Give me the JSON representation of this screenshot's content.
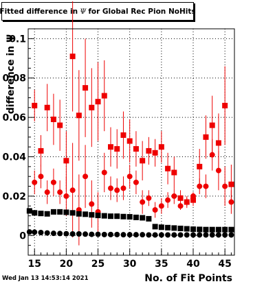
{
  "chart_data": {
    "type": "scatter",
    "title": "Fitted difference in Ψ for Global Rec Pion NoHits",
    "xlabel": "No. of Fit Points",
    "ylabel": "difference in Ψ",
    "xlim": [
      14,
      46.5
    ],
    "ylim": [
      -0.01,
      0.105
    ],
    "x_ticks": [
      15,
      20,
      25,
      30,
      35,
      40,
      45
    ],
    "x_tick_labels": [
      "15",
      "20",
      "25",
      "30",
      "35",
      "40",
      "45"
    ],
    "y_ticks": [
      0,
      0.02,
      0.04,
      0.06,
      0.08,
      0.1
    ],
    "y_tick_labels": [
      "0",
      "0.02",
      "0.04",
      "0.06",
      "0.08",
      "0.1"
    ],
    "series": [
      {
        "marker": "square",
        "color": "#ee0000",
        "x": [
          15,
          16,
          17,
          18,
          19,
          20,
          21,
          22,
          23,
          24,
          25,
          26,
          27,
          28,
          29,
          30,
          31,
          32,
          33,
          34,
          35,
          36,
          37,
          38,
          39,
          40,
          41,
          42,
          43,
          44,
          45,
          46
        ],
        "y": [
          0.066,
          0.043,
          0.065,
          0.059,
          0.056,
          0.038,
          0.091,
          0.061,
          0.075,
          0.065,
          0.068,
          0.071,
          0.045,
          0.044,
          0.051,
          0.048,
          0.044,
          0.038,
          0.043,
          0.042,
          0.045,
          0.034,
          0.032,
          0.019,
          0.017,
          0.018,
          0.035,
          0.05,
          0.056,
          0.047,
          0.066,
          0.026
        ],
        "err": [
          0.008,
          0.008,
          0.012,
          0.013,
          0.013,
          0.015,
          0.028,
          0.023,
          0.025,
          0.02,
          0.02,
          0.018,
          0.01,
          0.01,
          0.012,
          0.011,
          0.009,
          0.01,
          0.007,
          0.007,
          0.008,
          0.008,
          0.008,
          0.004,
          0.003,
          0.003,
          0.009,
          0.011,
          0.015,
          0.015,
          0.02,
          0.01
        ]
      },
      {
        "marker": "circle",
        "color": "#ee0000",
        "x": [
          15,
          16,
          17,
          18,
          19,
          20,
          21,
          22,
          23,
          24,
          25,
          26,
          27,
          28,
          29,
          30,
          31,
          32,
          33,
          34,
          35,
          36,
          37,
          38,
          39,
          40,
          41,
          42,
          43,
          44,
          45,
          46
        ],
        "y": [
          0.027,
          0.03,
          0.022,
          0.027,
          0.022,
          0.02,
          0.023,
          0.013,
          0.03,
          0.016,
          0.012,
          0.032,
          0.024,
          0.023,
          0.024,
          0.03,
          0.027,
          0.017,
          0.019,
          0.013,
          0.015,
          0.018,
          0.02,
          0.015,
          0.017,
          0.02,
          0.025,
          0.025,
          0.041,
          0.033,
          0.025,
          0.017
        ],
        "err": [
          0.006,
          0.006,
          0.006,
          0.007,
          0.006,
          0.01,
          0.024,
          0.018,
          0.016,
          0.012,
          0.01,
          0.01,
          0.006,
          0.006,
          0.006,
          0.006,
          0.006,
          0.006,
          0.004,
          0.004,
          0.004,
          0.004,
          0.004,
          0.002,
          0.002,
          0.002,
          0.004,
          0.006,
          0.008,
          0.01,
          0.01,
          0.006
        ]
      },
      {
        "marker": "square",
        "color": "#000000",
        "x": [
          14.2,
          15,
          16,
          17,
          18,
          19,
          20,
          21,
          22,
          23,
          24,
          25,
          26,
          27,
          28,
          29,
          30,
          31,
          32,
          33,
          34,
          35,
          36,
          37,
          38,
          39,
          40,
          41,
          42,
          43,
          44,
          45,
          46
        ],
        "y": [
          0.0125,
          0.0115,
          0.0112,
          0.011,
          0.012,
          0.012,
          0.0118,
          0.0115,
          0.011,
          0.0108,
          0.0105,
          0.0102,
          0.01,
          0.0098,
          0.0098,
          0.0096,
          0.0095,
          0.0092,
          0.009,
          0.0085,
          0.0045,
          0.0042,
          0.004,
          0.0038,
          0.0036,
          0.0034,
          0.0032,
          0.0031,
          0.003,
          0.003,
          0.003,
          0.003,
          0.003
        ],
        "err": [
          0,
          0,
          0,
          0,
          0,
          0,
          0,
          0,
          0,
          0,
          0,
          0,
          0,
          0,
          0,
          0,
          0,
          0,
          0,
          0,
          0,
          0,
          0,
          0,
          0,
          0,
          0,
          0,
          0,
          0,
          0,
          0,
          0
        ]
      },
      {
        "marker": "circle",
        "color": "#000000",
        "x": [
          14.2,
          15,
          16,
          17,
          18,
          19,
          20,
          21,
          22,
          23,
          24,
          25,
          26,
          27,
          28,
          29,
          30,
          31,
          32,
          33,
          34,
          35,
          36,
          37,
          38,
          39,
          40,
          41,
          42,
          43,
          44,
          45,
          46
        ],
        "y": [
          0.0018,
          0.0017,
          0.0015,
          0.0013,
          0.0011,
          0.001,
          0.0009,
          0.0008,
          0.0008,
          0.0007,
          0.0006,
          0.0006,
          0.0005,
          0.0005,
          0.0005,
          0.0004,
          0.0004,
          0.0004,
          0.0004,
          0.0003,
          0.0003,
          0.0003,
          0.0003,
          0.0003,
          0.0003,
          0.0003,
          0.0003,
          0.0003,
          0.0003,
          0.0003,
          0.0003,
          0.0003,
          0.0003
        ],
        "err": [
          0,
          0,
          0,
          0,
          0,
          0,
          0,
          0,
          0,
          0,
          0,
          0,
          0,
          0,
          0,
          0,
          0,
          0,
          0,
          0,
          0,
          0,
          0,
          0,
          0,
          0,
          0,
          0,
          0,
          0,
          0,
          0,
          0
        ]
      }
    ],
    "grid": "dotted"
  },
  "title_parts": [
    "Fitted difference in ",
    "Ψ",
    " for Global Rec Pion NoHits"
  ],
  "footer": "Wed Jan 13 14:53:14 2021"
}
